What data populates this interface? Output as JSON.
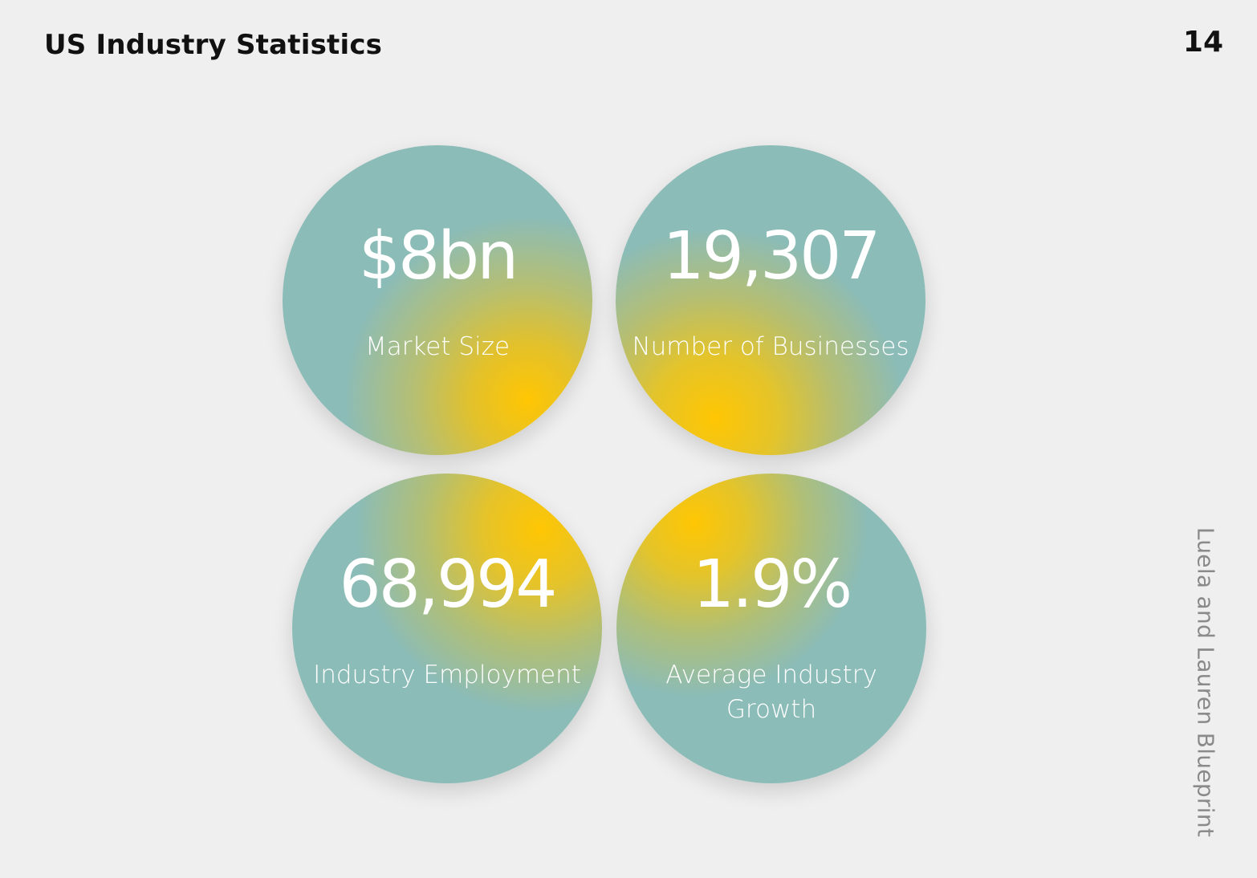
{
  "header": {
    "title": "US Industry Statistics",
    "page_number": "14"
  },
  "side_label": "Luela and Lauren Blueprint",
  "stats": [
    {
      "value": "$8bn",
      "label": "Market Size"
    },
    {
      "value": "19,307",
      "label": "Number of Businesses"
    },
    {
      "value": "68,994",
      "label": "Industry Employment"
    },
    {
      "value": "1.9%",
      "label": "Average Industry Growth"
    }
  ],
  "colors": {
    "background": "#efefef",
    "circle_teal": "#8bbcb8",
    "circle_yellow": "#ffc603",
    "text_dark": "#111111",
    "side_label": "#8a8a8a"
  }
}
